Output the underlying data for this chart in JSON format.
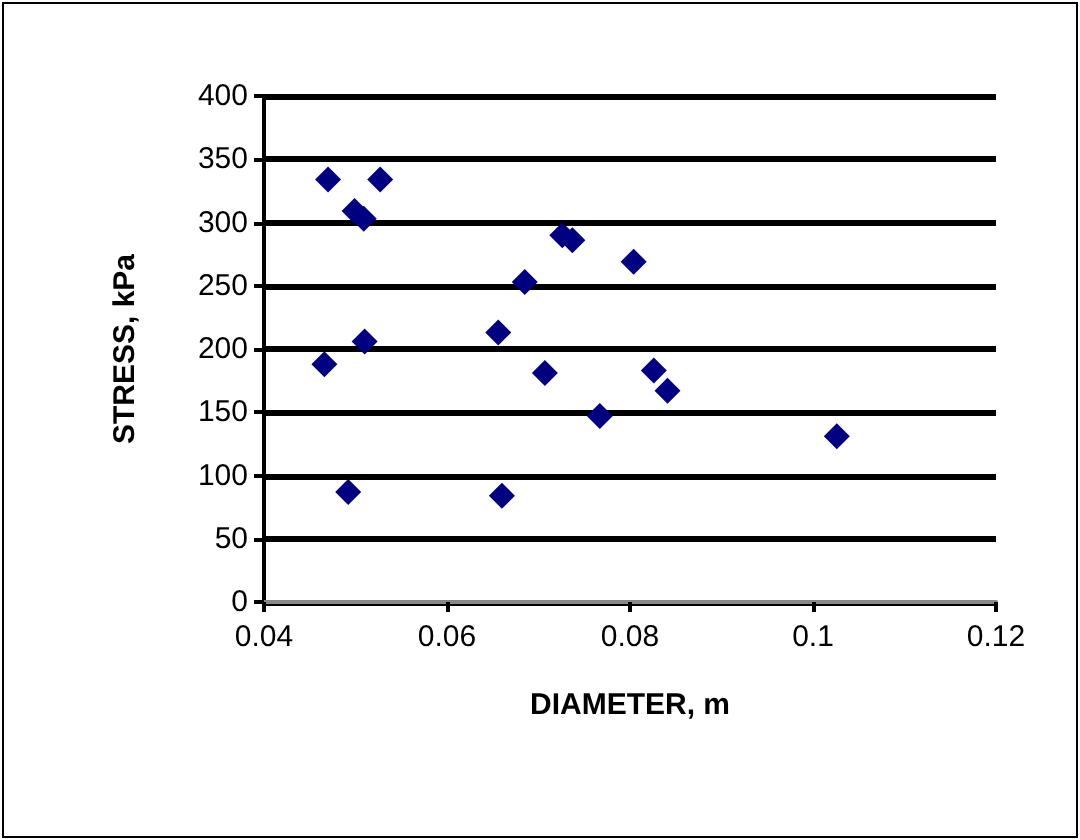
{
  "chart_data": {
    "type": "scatter",
    "xlabel": "DIAMETER, m",
    "ylabel": "STRESS, kPa",
    "x": [
      0.047,
      0.0527,
      0.0499,
      0.0509,
      0.0466,
      0.051,
      0.0492,
      0.0656,
      0.0685,
      0.0726,
      0.0737,
      0.0804,
      0.0707,
      0.0767,
      0.0826,
      0.0841,
      0.1026,
      0.066
    ],
    "series": [
      {
        "color": "#000080",
        "values": [
          334,
          334,
          309,
          303,
          188,
          206,
          87,
          213,
          253,
          290,
          286,
          269,
          181,
          147,
          183,
          167,
          131,
          84
        ]
      }
    ],
    "xlim": [
      0.04,
      0.12
    ],
    "xticks": [
      0.04,
      0.06,
      0.08,
      0.1,
      0.12
    ],
    "ylim": [
      0,
      400
    ],
    "yticks": [
      0,
      50,
      100,
      150,
      200,
      250,
      300,
      350,
      400
    ],
    "grid": "y",
    "marker": "diamond"
  }
}
